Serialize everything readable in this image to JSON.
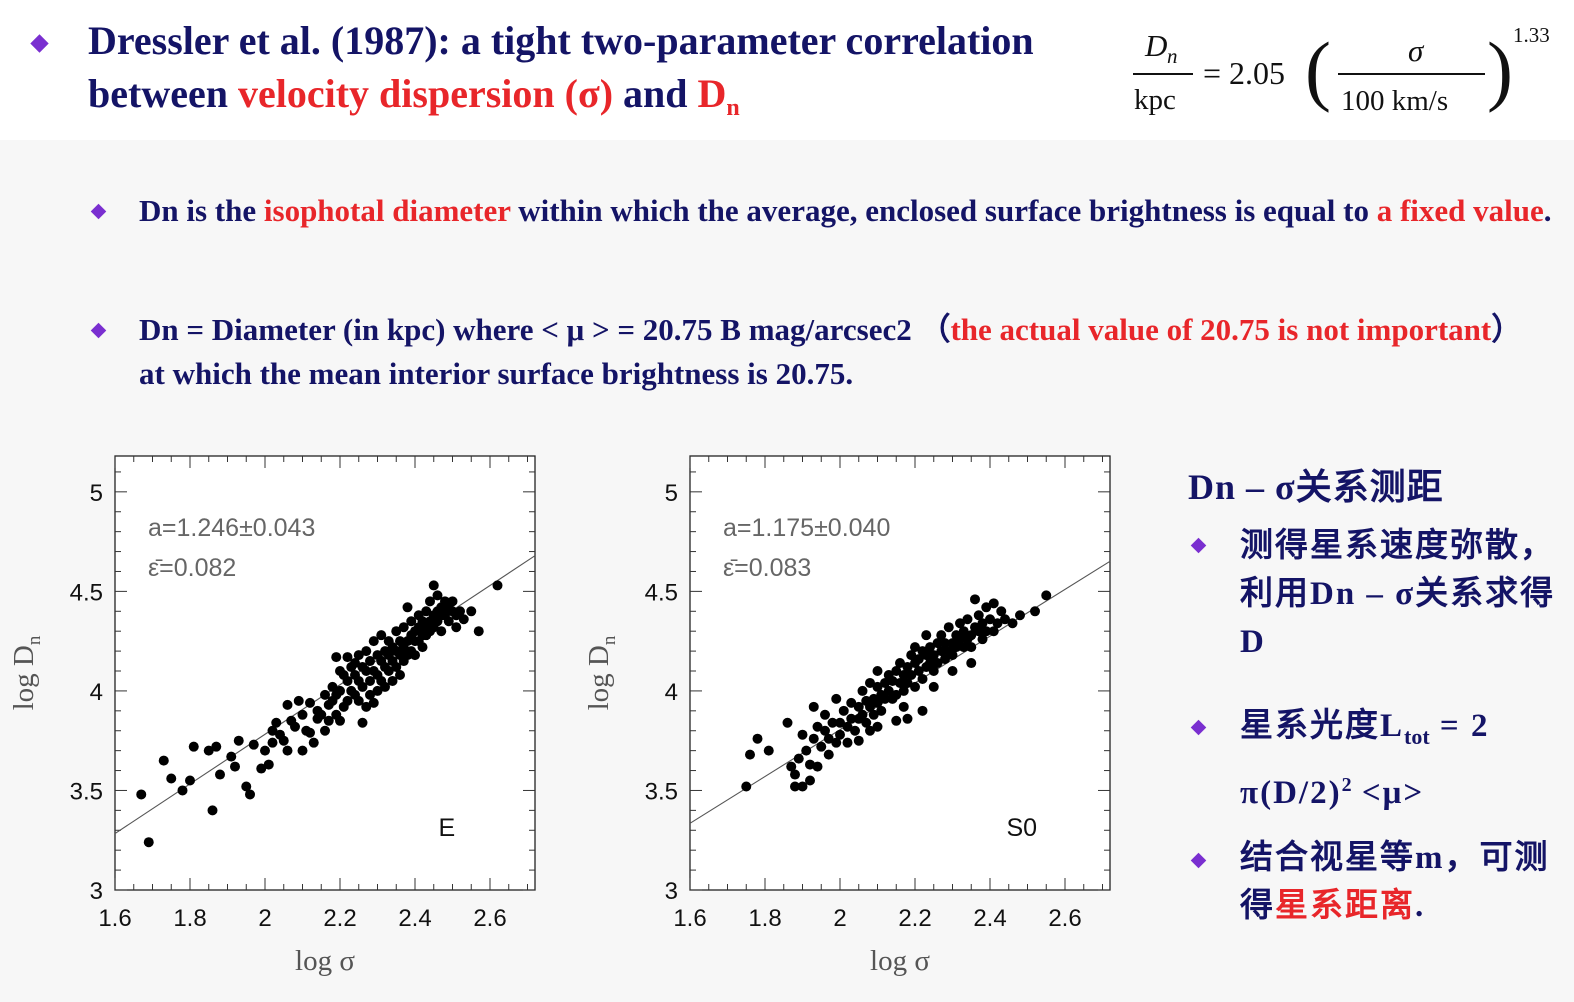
{
  "title": {
    "part1": "Dressler et al. (1987): a tight two-parameter correlation between ",
    "highlight1": "velocity dispersion (σ)",
    "part2": " and ",
    "highlight2": "D",
    "highlight2_sub": "n"
  },
  "formula": {
    "lhs_num": "D",
    "lhs_num_sub": "n",
    "lhs_den": "kpc",
    "equals_coef": "= 2.05",
    "rhs_num": "σ",
    "rhs_den": "100 km/s",
    "exponent": "1.33"
  },
  "bullet1": {
    "a": "Dn is the ",
    "b": "isophotal diameter",
    "c": " within which the average, enclosed surface brightness is equal to ",
    "d": "a fixed value",
    "e": "."
  },
  "bullet2": {
    "a": "Dn = Diameter (in kpc) where < μ > = 20.75 B mag/arcsec2 （",
    "b": "the actual value of 20.75 is not important",
    "c": "）at which the mean interior surface brightness is 20.75."
  },
  "side": {
    "heading": "Dn – σ关系测距",
    "item1": "测得星系速度弥散，利用Dn – σ关系求得 D",
    "item2_a": "星系光度L",
    "item2_sub": "tot",
    "item2_b": " = 2 π(D/2)",
    "item2_sup": "2",
    "item2_c": " <μ>",
    "item3_a": "结合视星等m，可测得",
    "item3_b": "星系距离",
    "item3_c": "."
  },
  "colors": {
    "navy": "#141466",
    "red": "#e8262a",
    "bullet": "#7a2fd0"
  },
  "chart_data": [
    {
      "type": "scatter",
      "label": "E",
      "xlabel": "log σ",
      "ylabel": "log D",
      "ylabel_sub": "n",
      "xlim": [
        1.6,
        2.72
      ],
      "ylim": [
        3.0,
        5.18
      ],
      "xticks": [
        "1.6",
        "1.8",
        "2",
        "2.2",
        "2.4",
        "2.6"
      ],
      "yticks": [
        "3",
        "3.5",
        "4",
        "4.5",
        "5"
      ],
      "annotation_slope": "a=1.246±0.043",
      "annotation_scatter": "ε̄=0.082",
      "fit": {
        "slope": 1.246,
        "intercept": 1.29
      },
      "points": [
        [
          1.67,
          3.48
        ],
        [
          1.69,
          3.24
        ],
        [
          1.73,
          3.65
        ],
        [
          1.75,
          3.56
        ],
        [
          1.78,
          3.5
        ],
        [
          1.8,
          3.55
        ],
        [
          1.81,
          3.72
        ],
        [
          1.85,
          3.7
        ],
        [
          1.86,
          3.4
        ],
        [
          1.87,
          3.72
        ],
        [
          1.88,
          3.58
        ],
        [
          1.91,
          3.67
        ],
        [
          1.92,
          3.62
        ],
        [
          1.93,
          3.75
        ],
        [
          1.95,
          3.52
        ],
        [
          1.96,
          3.48
        ],
        [
          1.97,
          3.73
        ],
        [
          1.99,
          3.61
        ],
        [
          2.0,
          3.7
        ],
        [
          2.01,
          3.63
        ],
        [
          2.02,
          3.8
        ],
        [
          2.02,
          3.74
        ],
        [
          2.03,
          3.84
        ],
        [
          2.04,
          3.78
        ],
        [
          2.05,
          3.75
        ],
        [
          2.06,
          3.7
        ],
        [
          2.07,
          3.85
        ],
        [
          2.08,
          3.82
        ],
        [
          2.1,
          3.88
        ],
        [
          2.1,
          3.7
        ],
        [
          2.11,
          3.8
        ],
        [
          2.12,
          3.94
        ],
        [
          2.12,
          3.79
        ],
        [
          2.13,
          3.74
        ],
        [
          2.14,
          3.9
        ],
        [
          2.15,
          3.88
        ],
        [
          2.16,
          3.98
        ],
        [
          2.17,
          3.93
        ],
        [
          2.17,
          3.85
        ],
        [
          2.18,
          3.95
        ],
        [
          2.18,
          4.02
        ],
        [
          2.19,
          3.98
        ],
        [
          2.19,
          3.88
        ],
        [
          2.19,
          4.17
        ],
        [
          2.2,
          4.1
        ],
        [
          2.2,
          4.0
        ],
        [
          2.21,
          3.92
        ],
        [
          2.21,
          4.08
        ],
        [
          2.22,
          4.05
        ],
        [
          2.22,
          3.95
        ],
        [
          2.22,
          4.17
        ],
        [
          2.23,
          4.12
        ],
        [
          2.23,
          4.0
        ],
        [
          2.24,
          4.08
        ],
        [
          2.24,
          3.98
        ],
        [
          2.25,
          4.18
        ],
        [
          2.25,
          4.05
        ],
        [
          2.25,
          3.95
        ],
        [
          2.26,
          4.12
        ],
        [
          2.26,
          4.02
        ],
        [
          2.26,
          3.84
        ],
        [
          2.27,
          4.1
        ],
        [
          2.27,
          4.2
        ],
        [
          2.28,
          4.05
        ],
        [
          2.28,
          3.98
        ],
        [
          2.28,
          4.15
        ],
        [
          2.29,
          4.1
        ],
        [
          2.29,
          4.25
        ],
        [
          2.3,
          4.08
        ],
        [
          2.3,
          4.18
        ],
        [
          2.3,
          4.0
        ],
        [
          2.31,
          4.15
        ],
        [
          2.31,
          4.05
        ],
        [
          2.31,
          4.28
        ],
        [
          2.32,
          4.12
        ],
        [
          2.32,
          4.2
        ],
        [
          2.32,
          4.02
        ],
        [
          2.33,
          4.18
        ],
        [
          2.33,
          4.1
        ],
        [
          2.33,
          4.25
        ],
        [
          2.34,
          4.15
        ],
        [
          2.34,
          4.22
        ],
        [
          2.34,
          4.05
        ],
        [
          2.35,
          4.2
        ],
        [
          2.35,
          4.3
        ],
        [
          2.35,
          4.12
        ],
        [
          2.36,
          4.25
        ],
        [
          2.36,
          4.18
        ],
        [
          2.36,
          4.08
        ],
        [
          2.37,
          4.22
        ],
        [
          2.37,
          4.32
        ],
        [
          2.37,
          4.15
        ],
        [
          2.38,
          4.25
        ],
        [
          2.38,
          4.18
        ],
        [
          2.38,
          4.42
        ],
        [
          2.39,
          4.28
        ],
        [
          2.39,
          4.2
        ],
        [
          2.39,
          4.35
        ],
        [
          2.4,
          4.25
        ],
        [
          2.4,
          4.3
        ],
        [
          2.4,
          4.18
        ],
        [
          2.41,
          4.32
        ],
        [
          2.41,
          4.25
        ],
        [
          2.41,
          4.38
        ],
        [
          2.42,
          4.28
        ],
        [
          2.42,
          4.35
        ],
        [
          2.42,
          4.22
        ],
        [
          2.43,
          4.32
        ],
        [
          2.43,
          4.4
        ],
        [
          2.43,
          4.28
        ],
        [
          2.44,
          4.35
        ],
        [
          2.44,
          4.3
        ],
        [
          2.44,
          4.45
        ],
        [
          2.45,
          4.38
        ],
        [
          2.45,
          4.32
        ],
        [
          2.45,
          4.53
        ],
        [
          2.46,
          4.4
        ],
        [
          2.46,
          4.35
        ],
        [
          2.46,
          4.48
        ],
        [
          2.47,
          4.38
        ],
        [
          2.47,
          4.42
        ],
        [
          2.47,
          4.3
        ],
        [
          2.48,
          4.45
        ],
        [
          2.48,
          4.38
        ],
        [
          2.49,
          4.42
        ],
        [
          2.49,
          4.35
        ],
        [
          2.5,
          4.4
        ],
        [
          2.5,
          4.45
        ],
        [
          2.51,
          4.38
        ],
        [
          2.51,
          4.32
        ],
        [
          2.52,
          4.4
        ],
        [
          2.53,
          4.36
        ],
        [
          2.55,
          4.4
        ],
        [
          2.57,
          4.3
        ],
        [
          2.62,
          4.53
        ],
        [
          2.16,
          3.8
        ],
        [
          2.06,
          3.93
        ],
        [
          2.09,
          3.95
        ],
        [
          2.14,
          3.86
        ],
        [
          2.2,
          3.85
        ],
        [
          2.24,
          4.14
        ],
        [
          2.29,
          3.94
        ],
        [
          2.27,
          3.92
        ]
      ]
    },
    {
      "type": "scatter",
      "label": "S0",
      "xlabel": "log σ",
      "ylabel": "log D",
      "ylabel_sub": "n",
      "xlim": [
        1.6,
        2.72
      ],
      "ylim": [
        3.0,
        5.18
      ],
      "xticks": [
        "1.6",
        "1.8",
        "2",
        "2.2",
        "2.4",
        "2.6"
      ],
      "yticks": [
        "3",
        "3.5",
        "4",
        "4.5",
        "5"
      ],
      "annotation_slope": "a=1.175±0.040",
      "annotation_scatter": "ε̄=0.083",
      "fit": {
        "slope": 1.175,
        "intercept": 1.455
      },
      "points": [
        [
          1.75,
          3.52
        ],
        [
          1.76,
          3.68
        ],
        [
          1.78,
          3.76
        ],
        [
          1.81,
          3.7
        ],
        [
          1.86,
          3.84
        ],
        [
          1.87,
          3.62
        ],
        [
          1.88,
          3.58
        ],
        [
          1.88,
          3.52
        ],
        [
          1.89,
          3.66
        ],
        [
          1.9,
          3.52
        ],
        [
          1.9,
          3.78
        ],
        [
          1.91,
          3.7
        ],
        [
          1.92,
          3.63
        ],
        [
          1.92,
          3.55
        ],
        [
          1.93,
          3.76
        ],
        [
          1.93,
          3.92
        ],
        [
          1.94,
          3.82
        ],
        [
          1.94,
          3.62
        ],
        [
          1.95,
          3.72
        ],
        [
          1.96,
          3.8
        ],
        [
          1.96,
          3.88
        ],
        [
          1.97,
          3.68
        ],
        [
          1.97,
          3.76
        ],
        [
          1.98,
          3.84
        ],
        [
          1.99,
          3.74
        ],
        [
          1.99,
          3.96
        ],
        [
          2.0,
          3.84
        ],
        [
          2.0,
          3.78
        ],
        [
          2.01,
          3.9
        ],
        [
          2.02,
          3.82
        ],
        [
          2.02,
          3.74
        ],
        [
          2.03,
          3.94
        ],
        [
          2.03,
          3.86
        ],
        [
          2.04,
          3.8
        ],
        [
          2.05,
          3.92
        ],
        [
          2.05,
          3.86
        ],
        [
          2.06,
          4.0
        ],
        [
          2.06,
          3.88
        ],
        [
          2.07,
          3.95
        ],
        [
          2.07,
          3.84
        ],
        [
          2.08,
          3.92
        ],
        [
          2.08,
          4.04
        ],
        [
          2.09,
          3.96
        ],
        [
          2.09,
          3.88
        ],
        [
          2.1,
          4.02
        ],
        [
          2.1,
          3.94
        ],
        [
          2.1,
          4.1
        ],
        [
          2.11,
          3.98
        ],
        [
          2.11,
          3.9
        ],
        [
          2.12,
          4.04
        ],
        [
          2.12,
          3.96
        ],
        [
          2.13,
          4.0
        ],
        [
          2.13,
          4.08
        ],
        [
          2.14,
          3.96
        ],
        [
          2.14,
          4.05
        ],
        [
          2.15,
          4.1
        ],
        [
          2.15,
          3.98
        ],
        [
          2.16,
          4.04
        ],
        [
          2.16,
          4.14
        ],
        [
          2.17,
          4.0
        ],
        [
          2.17,
          4.08
        ],
        [
          2.17,
          3.92
        ],
        [
          2.18,
          4.12
        ],
        [
          2.18,
          4.04
        ],
        [
          2.19,
          4.18
        ],
        [
          2.19,
          4.08
        ],
        [
          2.2,
          4.14
        ],
        [
          2.2,
          4.02
        ],
        [
          2.2,
          4.22
        ],
        [
          2.21,
          4.1
        ],
        [
          2.21,
          4.16
        ],
        [
          2.22,
          4.06
        ],
        [
          2.22,
          4.2
        ],
        [
          2.23,
          4.12
        ],
        [
          2.23,
          4.18
        ],
        [
          2.23,
          4.28
        ],
        [
          2.24,
          4.14
        ],
        [
          2.24,
          4.22
        ],
        [
          2.25,
          4.1
        ],
        [
          2.25,
          4.18
        ],
        [
          2.26,
          4.24
        ],
        [
          2.26,
          4.14
        ],
        [
          2.27,
          4.2
        ],
        [
          2.27,
          4.28
        ],
        [
          2.28,
          4.16
        ],
        [
          2.28,
          4.24
        ],
        [
          2.29,
          4.2
        ],
        [
          2.29,
          4.32
        ],
        [
          2.3,
          4.24
        ],
        [
          2.3,
          4.18
        ],
        [
          2.31,
          4.28
        ],
        [
          2.31,
          4.22
        ],
        [
          2.32,
          4.34
        ],
        [
          2.32,
          4.26
        ],
        [
          2.33,
          4.22
        ],
        [
          2.33,
          4.3
        ],
        [
          2.34,
          4.26
        ],
        [
          2.34,
          4.36
        ],
        [
          2.35,
          4.28
        ],
        [
          2.35,
          4.22
        ],
        [
          2.36,
          4.32
        ],
        [
          2.36,
          4.46
        ],
        [
          2.37,
          4.3
        ],
        [
          2.37,
          4.38
        ],
        [
          2.38,
          4.26
        ],
        [
          2.38,
          4.34
        ],
        [
          2.39,
          4.3
        ],
        [
          2.39,
          4.42
        ],
        [
          2.4,
          4.36
        ],
        [
          2.41,
          4.3
        ],
        [
          2.41,
          4.44
        ],
        [
          2.42,
          4.34
        ],
        [
          2.43,
          4.4
        ],
        [
          2.44,
          4.36
        ],
        [
          2.46,
          4.34
        ],
        [
          2.48,
          4.38
        ],
        [
          2.52,
          4.4
        ],
        [
          2.55,
          4.48
        ],
        [
          2.05,
          3.75
        ],
        [
          2.1,
          3.82
        ],
        [
          2.15,
          3.85
        ],
        [
          2.25,
          4.02
        ],
        [
          2.3,
          4.1
        ],
        [
          2.35,
          4.14
        ],
        [
          2.08,
          3.8
        ],
        [
          2.22,
          3.9
        ],
        [
          2.18,
          3.86
        ]
      ]
    }
  ]
}
